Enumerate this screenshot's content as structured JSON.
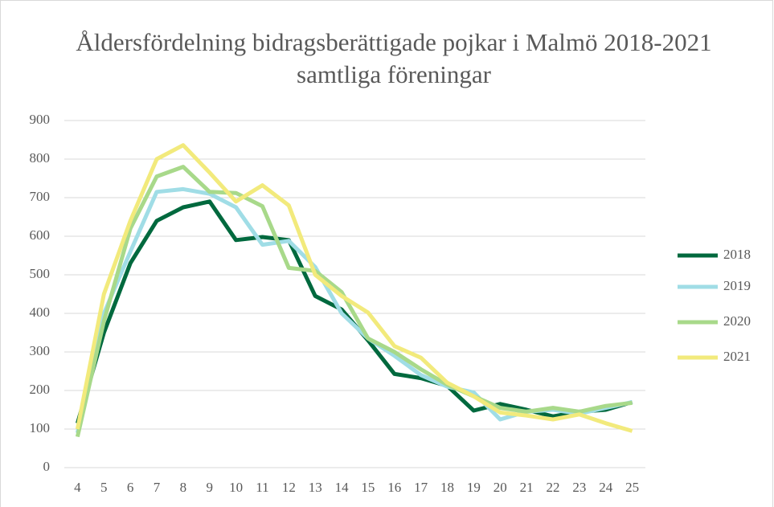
{
  "chart_data": {
    "type": "line",
    "title": "Åldersfördelning bidragsberättigade pojkar i Malmö 2018-2021 samtliga föreningar",
    "categories": [
      "4",
      "5",
      "6",
      "7",
      "8",
      "9",
      "10",
      "11",
      "12",
      "13",
      "14",
      "15",
      "16",
      "17",
      "18",
      "19",
      "20",
      "21",
      "22",
      "23",
      "24",
      "25"
    ],
    "series": [
      {
        "name": "2018",
        "color": "#00693e",
        "values": [
          115,
          350,
          530,
          640,
          675,
          690,
          590,
          598,
          590,
          445,
          410,
          330,
          243,
          232,
          212,
          148,
          165,
          150,
          133,
          145,
          150,
          170
        ]
      },
      {
        "name": "2019",
        "color": "#a0dde6",
        "values": [
          90,
          400,
          560,
          715,
          722,
          710,
          675,
          578,
          588,
          520,
          400,
          335,
          290,
          240,
          210,
          195,
          125,
          145,
          150,
          140,
          155,
          170
        ]
      },
      {
        "name": "2020",
        "color": "#a8d98a",
        "values": [
          80,
          380,
          620,
          755,
          780,
          715,
          712,
          678,
          518,
          510,
          455,
          335,
          300,
          255,
          215,
          185,
          155,
          145,
          155,
          145,
          160,
          168
        ]
      },
      {
        "name": "2021",
        "color": "#f2ea7c",
        "values": [
          100,
          450,
          640,
          800,
          836,
          765,
          690,
          732,
          680,
          500,
          445,
          402,
          315,
          285,
          220,
          185,
          143,
          135,
          125,
          138,
          115,
          95
        ]
      }
    ],
    "ylim": [
      0,
      900
    ],
    "yticks": [
      0,
      100,
      200,
      300,
      400,
      500,
      600,
      700,
      800,
      900
    ],
    "grid": true,
    "legend": "right"
  }
}
